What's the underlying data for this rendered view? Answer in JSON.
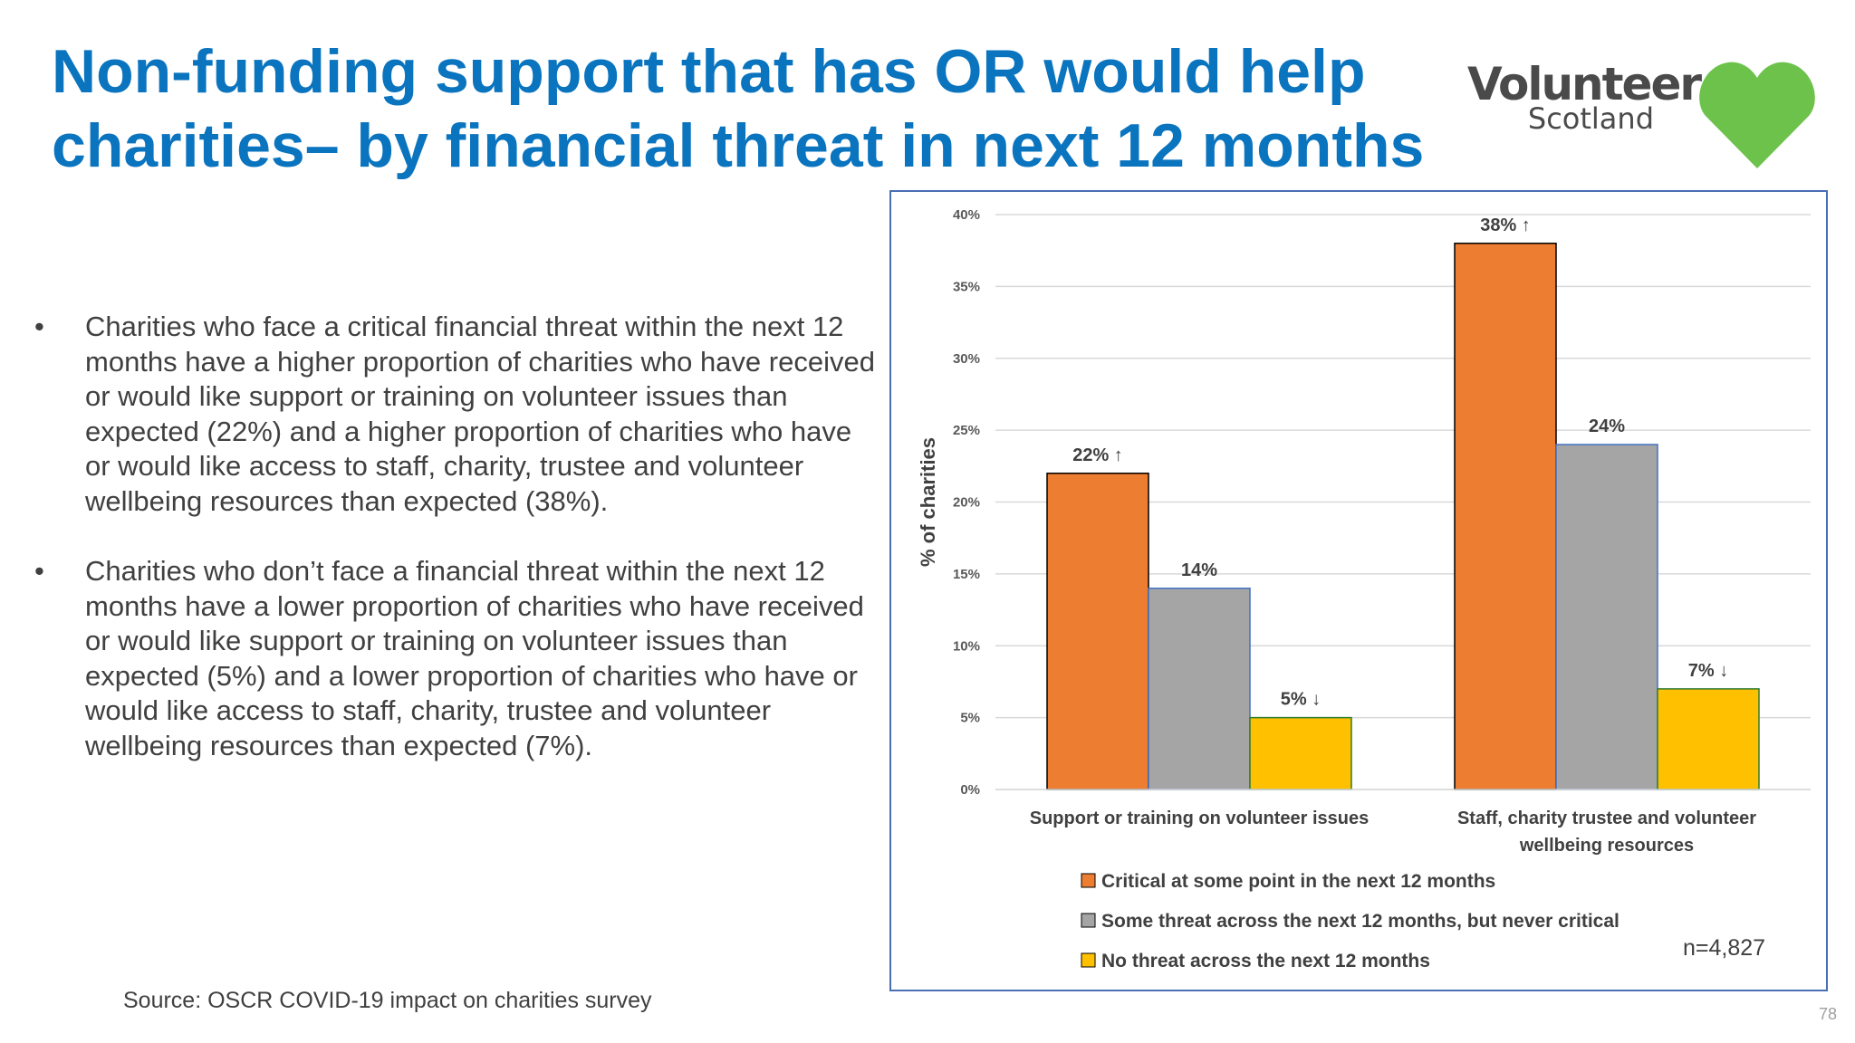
{
  "title": "Non-funding support that has OR would help charities– by financial threat in next 12 months",
  "logo": {
    "word": "Volunteer",
    "sub": "Scotland",
    "heart_color": "#6cc24a"
  },
  "bullets": [
    "Charities who face a critical financial threat within the next 12 months have a higher proportion of charities who have received or would like support or training on volunteer issues than expected (22%) and a higher proportion of charities who have or would like access to staff, charity, trustee and volunteer wellbeing resources than expected (38%).",
    "Charities who don’t face a financial threat within the next 12 months have a lower proportion of charities who have received or would like support or training on volunteer issues than expected (5%) and a lower proportion of charities who have or would like access to staff, charity, trustee and volunteer wellbeing resources than expected (7%)."
  ],
  "bullet_glyph": "•",
  "source": "Source: OSCR COVID-19 impact on charities survey",
  "page_number": "78",
  "n_label": "n=4,827",
  "chart_data": {
    "type": "bar",
    "ylabel": "% of charities",
    "ylim": [
      0,
      40
    ],
    "yticks": [
      "0%",
      "5%",
      "10%",
      "15%",
      "20%",
      "25%",
      "30%",
      "35%",
      "40%"
    ],
    "categories": [
      "Support or training on volunteer issues",
      "Staff, charity trustee and volunteer wellbeing resources"
    ],
    "series": [
      {
        "name": "Critical at some point in the next 12 months",
        "color": "#ed7d31",
        "values": [
          22,
          38
        ],
        "labels": [
          "22% ↑",
          "38% ↑"
        ]
      },
      {
        "name": "Some threat across the next 12 months, but never critical",
        "color": "#a5a5a5",
        "values": [
          14,
          24
        ],
        "labels": [
          "14%",
          "24%"
        ]
      },
      {
        "name": "No threat across the next 12 months",
        "color": "#ffc000",
        "values": [
          5,
          7
        ],
        "labels": [
          "5% ↓",
          "7% ↓"
        ]
      }
    ],
    "grid": true,
    "legend_position": "bottom"
  }
}
